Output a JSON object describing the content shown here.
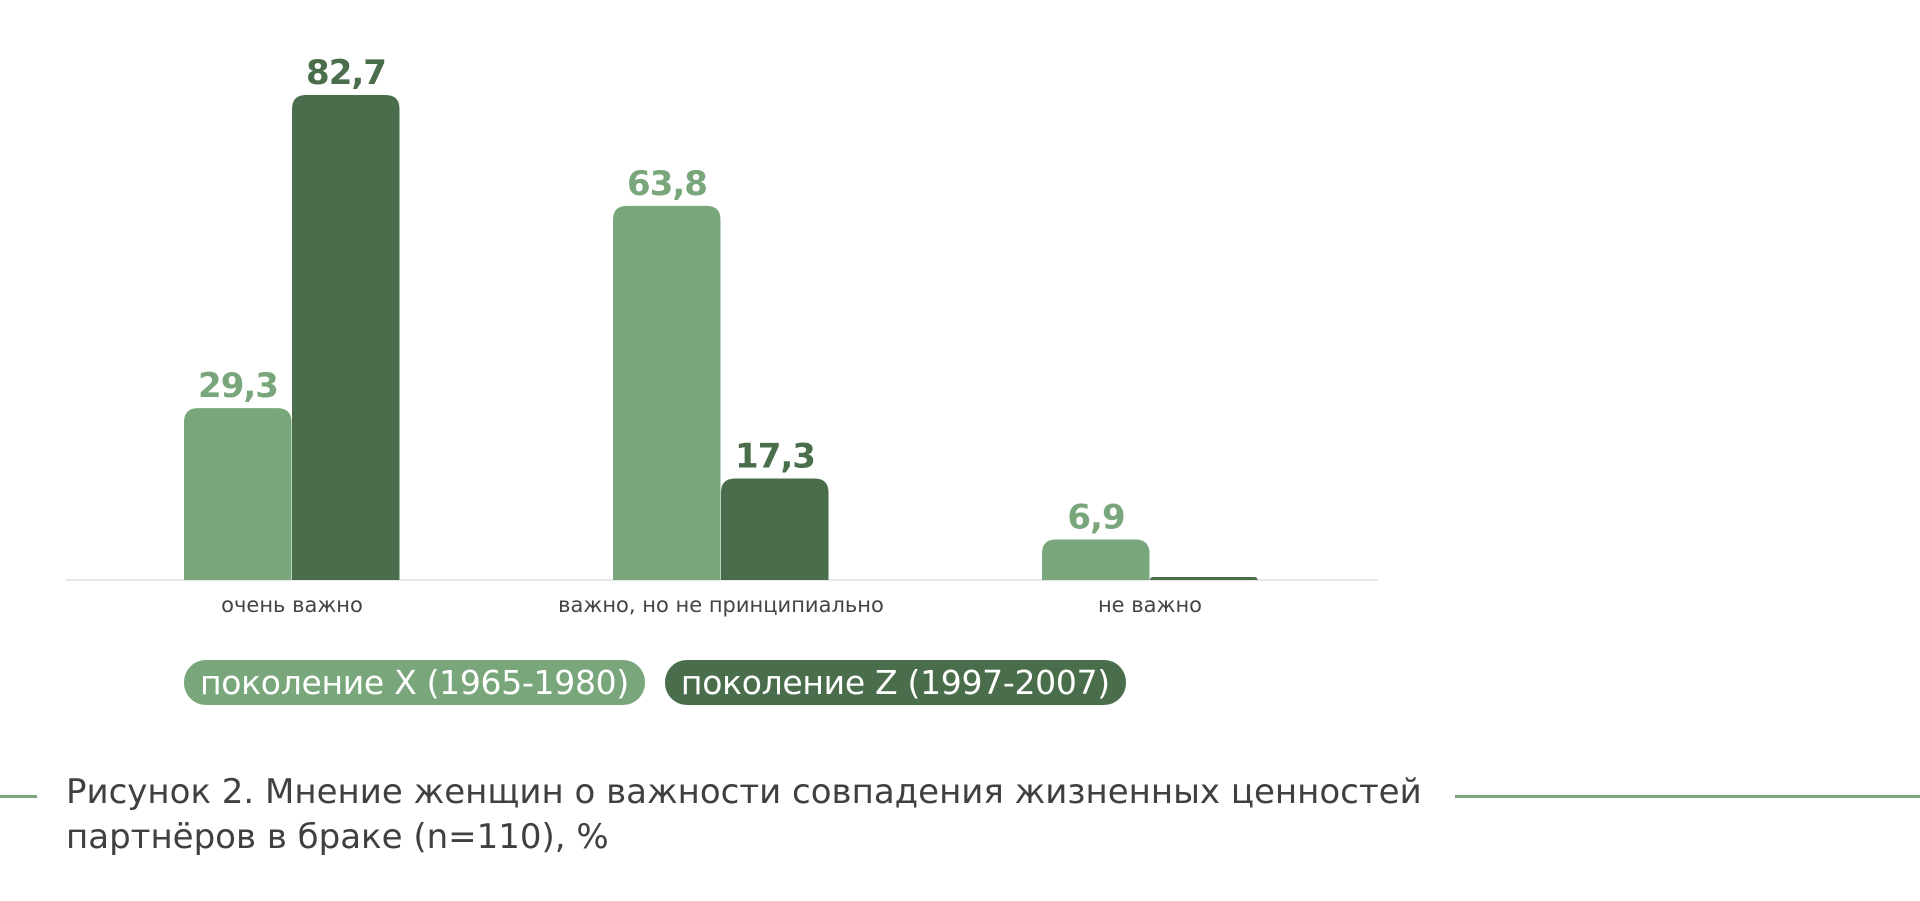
{
  "colors": {
    "series_x": "#79a77b",
    "series_z": "#4a6e4b",
    "axis_line": "#dddddd",
    "tick_text": "#444444",
    "caption_text": "#404040"
  },
  "chart_data": {
    "type": "bar",
    "categories": [
      "очень важно",
      "важно, но не принципиально",
      "не важно"
    ],
    "series": [
      {
        "name": "поколение X (1965-1980)",
        "values": [
          29.3,
          63.8,
          6.9
        ],
        "labels": [
          "29,3",
          "63,8",
          "6,9"
        ]
      },
      {
        "name": "поколение Z (1997-2007)",
        "values": [
          82.7,
          17.3,
          0.0
        ],
        "labels": [
          "82,7",
          "17,3",
          ""
        ]
      }
    ],
    "ylim": [
      0,
      100
    ],
    "grid": false,
    "legend_position": "bottom-left"
  },
  "caption": {
    "line1": "Рисунок 2. Мнение женщин о важности совпадения жизненных ценностей",
    "line2": "партнёров в браке (n=110), %"
  }
}
